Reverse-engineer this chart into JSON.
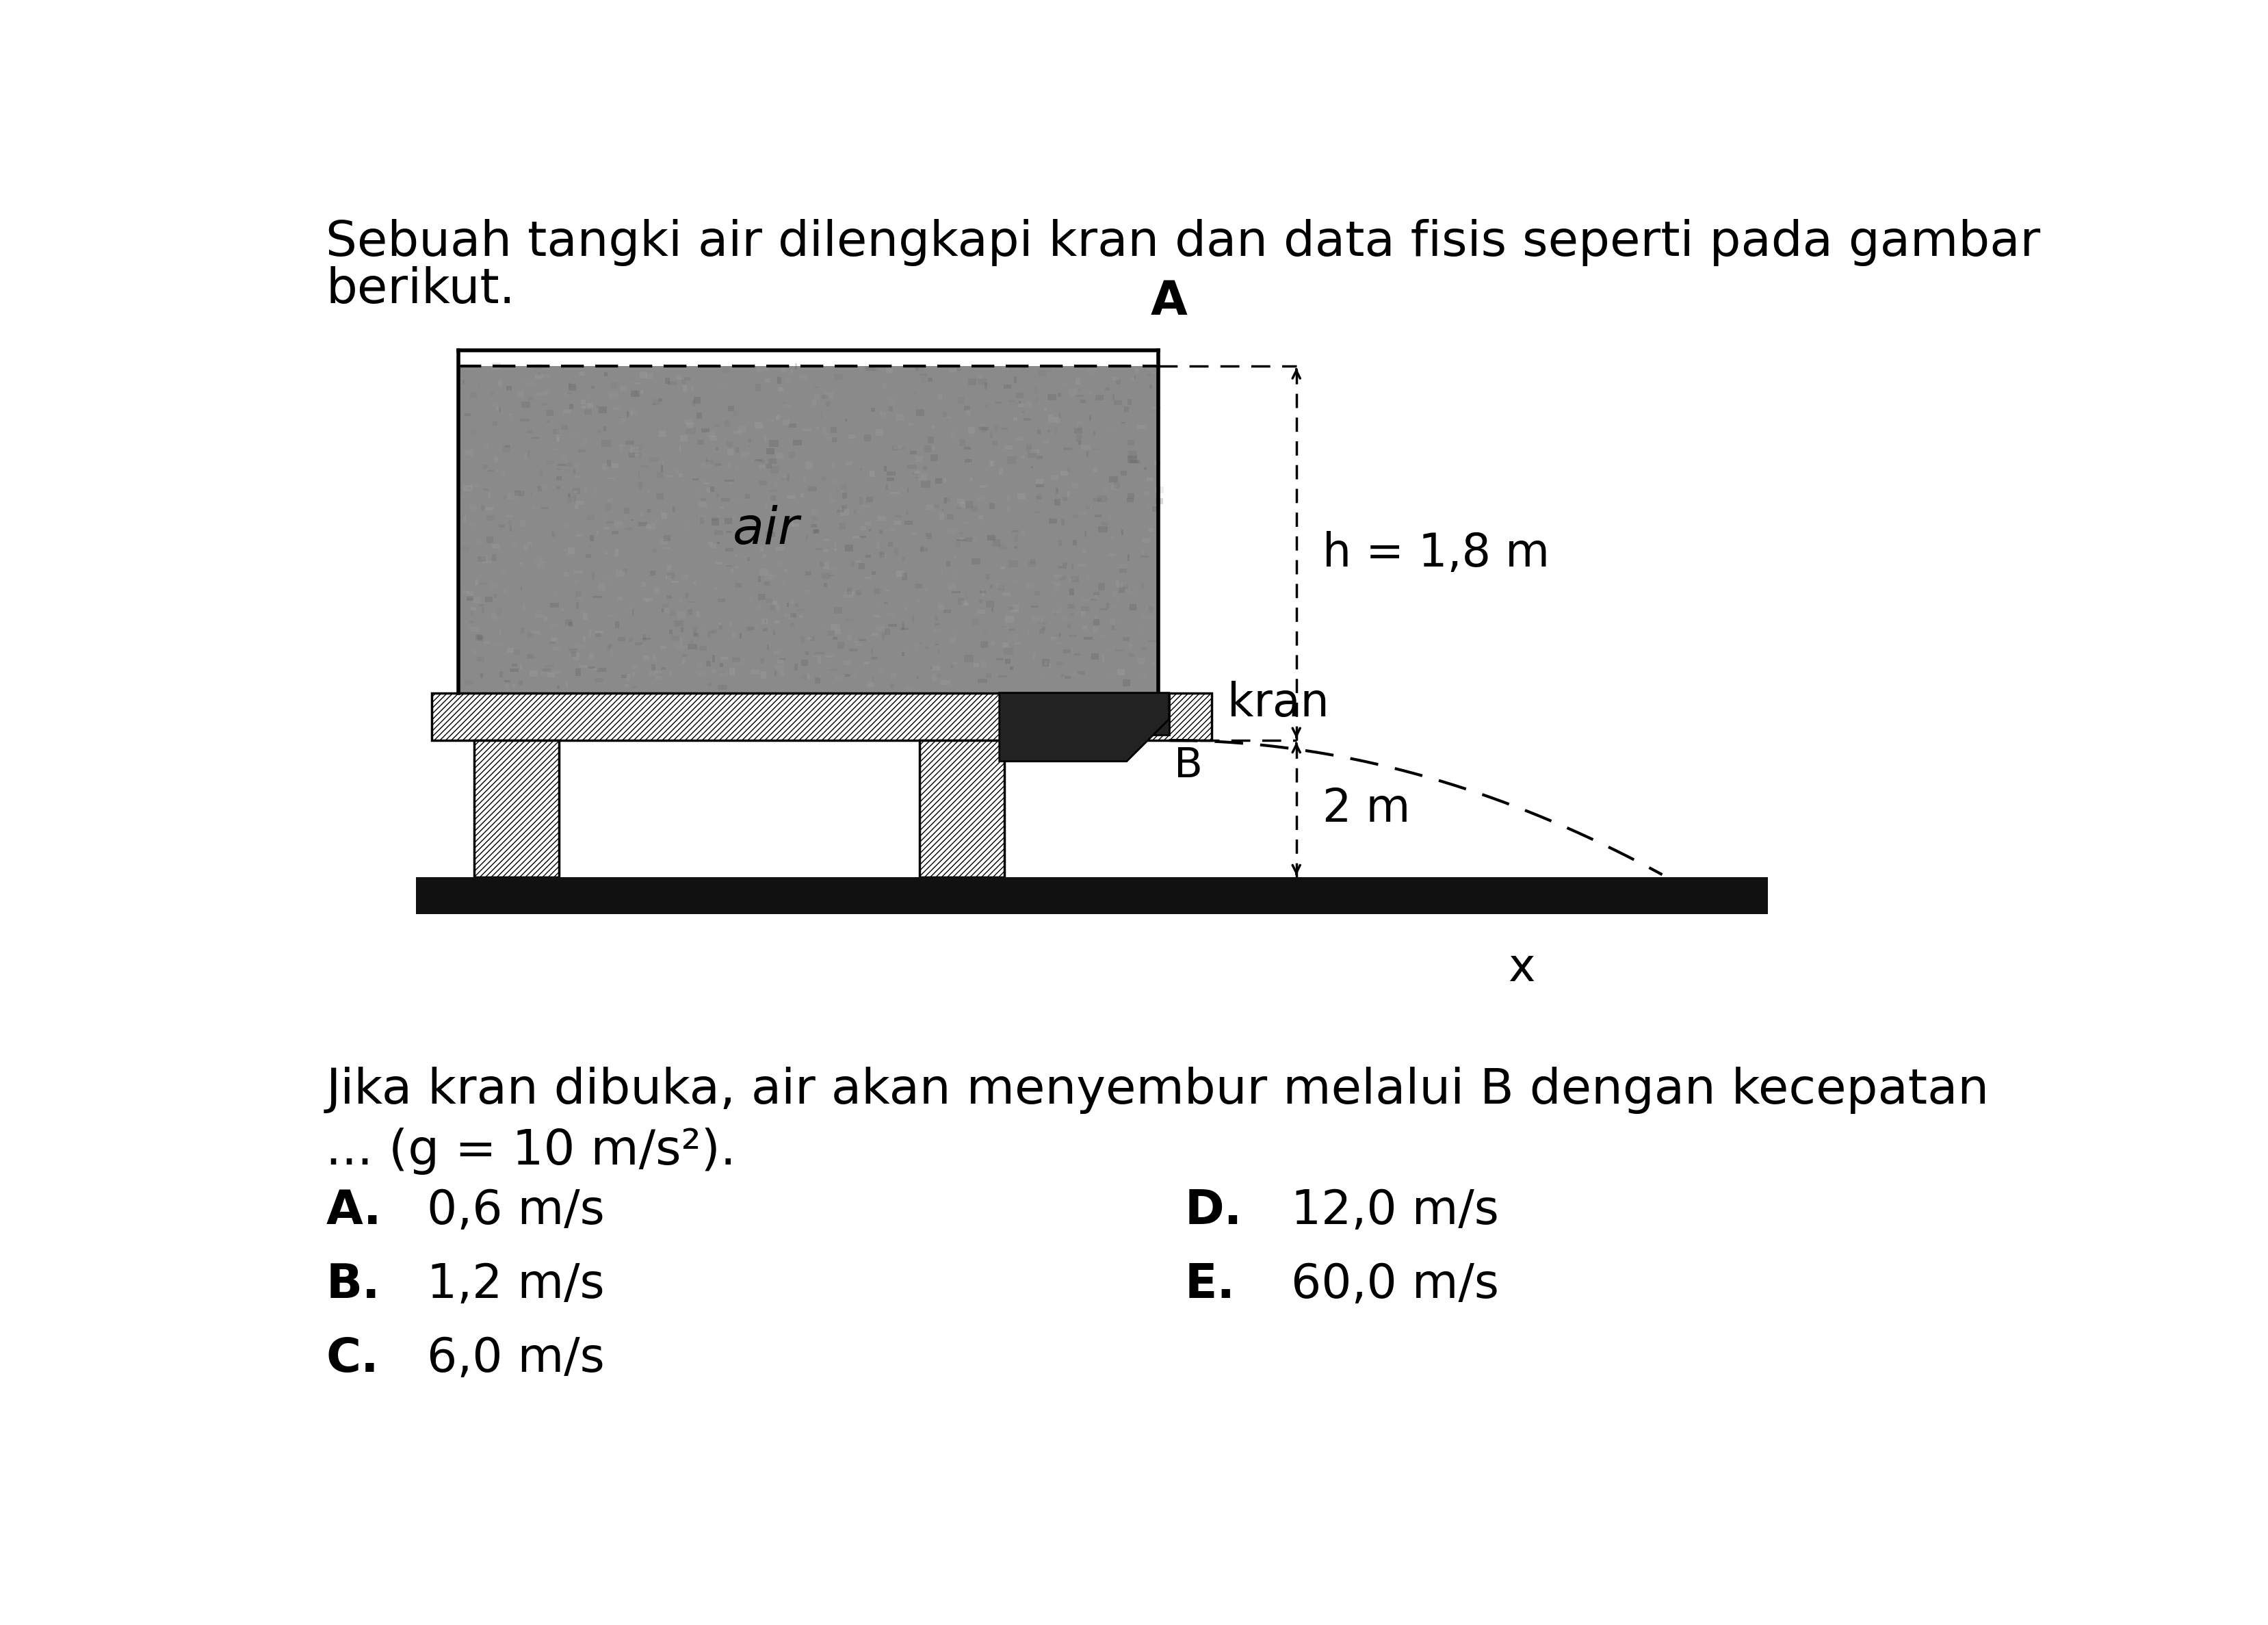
{
  "title_line1": "Sebuah tangki air dilengkapi kran dan data fisis seperti pada gambar",
  "title_line2": "berikut.",
  "question_line1": "Jika kran dibuka, air akan menyembur melalui B dengan kecepatan",
  "question_line2": "... (g = 10 m/s²).",
  "options": [
    {
      "label": "A.",
      "text": "0,6 m/s"
    },
    {
      "label": "B.",
      "text": "1,2 m/s"
    },
    {
      "label": "C.",
      "text": "6,0 m/s"
    },
    {
      "label": "D.",
      "text": "12,0 m/s"
    },
    {
      "label": "E.",
      "text": "60,0 m/s"
    }
  ],
  "h_label": "h = 1,8 m",
  "h2_label": "2 m",
  "x_label": "x",
  "A_label": "A",
  "B_label": "B",
  "kran_label": "kran",
  "air_label": "air",
  "bg_color": "#ffffff",
  "tank_fill_color": "#888888",
  "ground_color": "#111111",
  "font_size_title": 52,
  "font_size_labels": 44,
  "font_size_options": 50,
  "font_size_diagram": 42
}
